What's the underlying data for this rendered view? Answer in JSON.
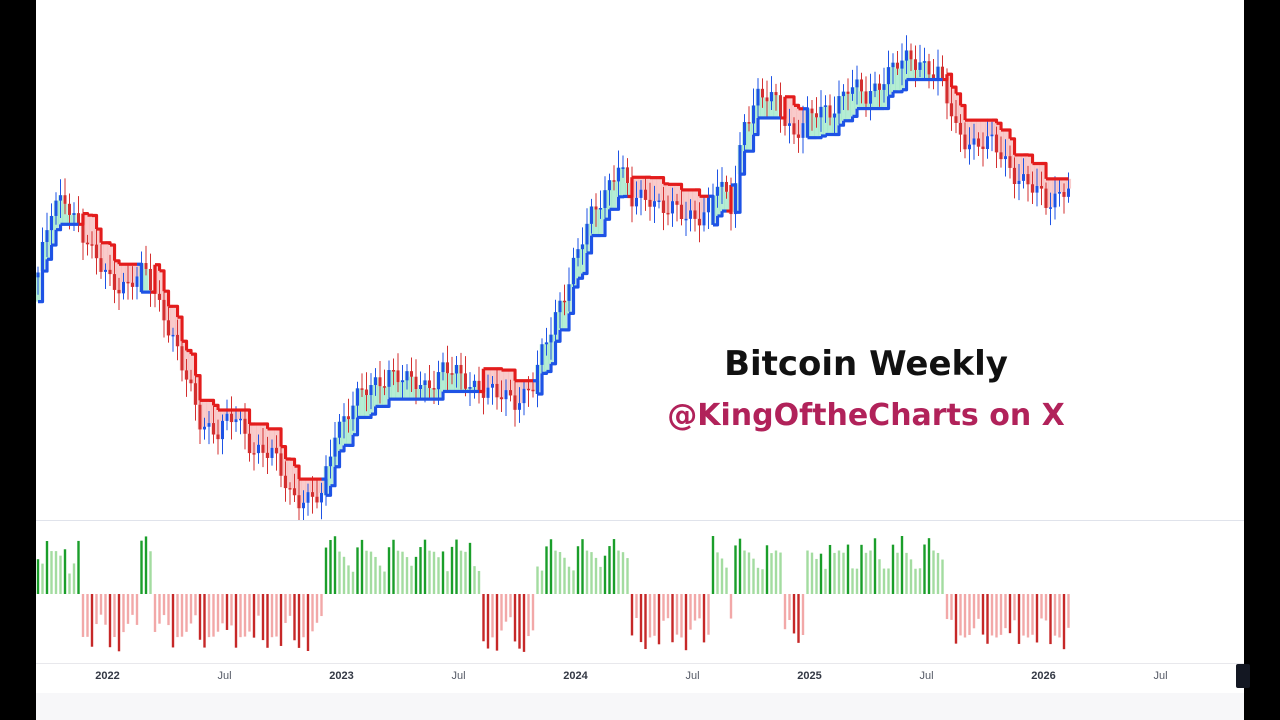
{
  "overlay": {
    "title": "Bitcoin Weekly",
    "handle": "@KingOftheCharts on X"
  },
  "time_axis": {
    "ticks": [
      {
        "label": "2022",
        "bar": 11,
        "year": true
      },
      {
        "label": "Jul",
        "bar": 37,
        "year": false
      },
      {
        "label": "2023",
        "bar": 63,
        "year": true
      },
      {
        "label": "Jul",
        "bar": 89,
        "year": false
      },
      {
        "label": "2024",
        "bar": 115,
        "year": true
      },
      {
        "label": "Jul",
        "bar": 141,
        "year": false
      },
      {
        "label": "2025",
        "bar": 167,
        "year": true
      },
      {
        "label": "Jul",
        "bar": 193,
        "year": false
      },
      {
        "label": "2026",
        "bar": 219,
        "year": true
      },
      {
        "label": "Jul",
        "bar": 245,
        "year": false
      }
    ]
  },
  "colors": {
    "bull_candle": "#1e53e5",
    "bear_candle": "#d32f2f",
    "bull_line": "#1e53e5",
    "bear_line": "#e31c1c",
    "bull_fill": "#5ad6a0",
    "bear_fill": "#f28b8b",
    "hist_up_strong": "#1a9e2a",
    "hist_up_weak": "#a3dca0",
    "hist_down_strong": "#c62828",
    "hist_down_weak": "#f2a8a8"
  },
  "chart_data": [
    {
      "type": "candlestick",
      "name": "Bitcoin Weekly",
      "x_unit": "weekly bar index (bar 0 = first visible week, late 2021)",
      "y_unit": "relative price level (0 = chart bottom, 100 = chart top)",
      "ylim": [
        0,
        100
      ],
      "anchors_x": [
        0,
        3,
        6,
        9,
        12,
        16,
        20,
        24,
        28,
        32,
        36,
        40,
        44,
        48,
        52,
        56,
        60,
        63,
        66,
        70,
        74,
        78,
        82,
        86,
        90,
        94,
        98,
        102,
        106,
        110,
        114,
        116,
        119,
        123,
        126,
        129,
        132,
        136,
        140,
        144,
        148,
        151,
        154,
        157,
        160,
        164,
        168,
        172,
        176,
        180,
        184,
        188,
        192,
        196,
        200,
        204,
        208,
        212,
        216,
        220,
        224,
        228
      ],
      "anchors_close": [
        50,
        62,
        66,
        60,
        53,
        49,
        47,
        50,
        42,
        30,
        20,
        17,
        20,
        14,
        12,
        5,
        3,
        3,
        18,
        23,
        26,
        30,
        27,
        27,
        30,
        28,
        27,
        24,
        24,
        27,
        38,
        44,
        52,
        61,
        67,
        73,
        64,
        66,
        63,
        61,
        63,
        68,
        63,
        82,
        86,
        85,
        79,
        82,
        84,
        88,
        86,
        91,
        93,
        94,
        91,
        79,
        77,
        76,
        72,
        68,
        64,
        68
      ],
      "note": "Blue = up week, red = down week; wicks drawn around each candle body"
    },
    {
      "type": "line",
      "name": "trend stop line",
      "note": "Stepped trailing line: blue in uptrend, red in downtrend, with green/red shaded band between it and the candles"
    },
    {
      "type": "histogram",
      "name": "momentum histogram",
      "y_unit": "relative momentum (-1 to 1)",
      "note": "Green bars above zero in uptrends, red bars below zero in downtrends; darker shade = stronger bar"
    }
  ]
}
